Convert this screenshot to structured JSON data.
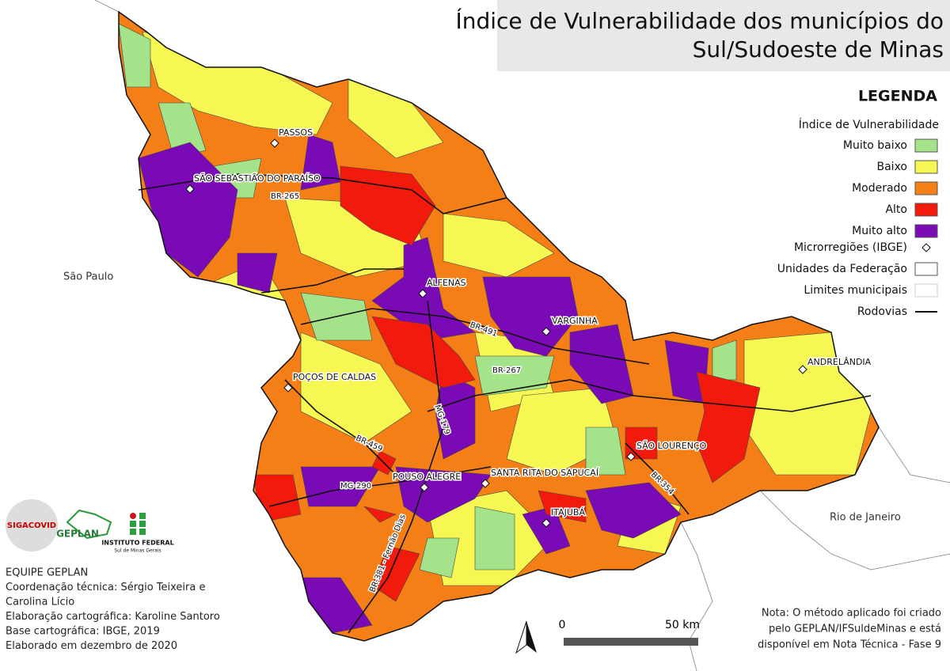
{
  "header": {
    "title_lines": [
      "Índice de Vulnerabilidade dos municípios do",
      "Sul/Sudoeste de Minas"
    ]
  },
  "legend": {
    "heading": "LEGENDA",
    "subtitle": "Índice de Vulnerabilidade",
    "classes": [
      {
        "label": "Muito baixo",
        "color": "#a4e38a"
      },
      {
        "label": "Baixo",
        "color": "#f6f752"
      },
      {
        "label": "Moderado",
        "color": "#f57f17"
      },
      {
        "label": "Alto",
        "color": "#f2190d"
      },
      {
        "label": "Muito alto",
        "color": "#790ab6"
      }
    ],
    "symbols": [
      "Microrregiões (IBGE)",
      "Unidades da Federação",
      "Limites municipais",
      "Rodovias"
    ]
  },
  "places": [
    "PASSOS",
    "SÃO SEBASTIÃO DO PARAÍSO",
    "ALFENAS",
    "VARGINHA",
    "POÇOS DE CALDAS",
    "ANDRELÂNDIA",
    "SÃO LOURENÇO",
    "POUSO ALEGRE",
    "SANTA RITA DO SAPUCAÍ",
    "ITAJUBÁ"
  ],
  "roads": [
    "BR-265",
    "BR-491",
    "BR-267",
    "MG-179",
    "BR-459",
    "MG-290",
    "BR-354",
    "BR-381 - Fernão Dias"
  ],
  "states": [
    "São Paulo",
    "Rio de Janeiro"
  ],
  "logos": [
    "SIGACOVID",
    "GEPLAN",
    "INSTITUTO FEDERAL",
    "Sul de Minas Gerais"
  ],
  "credits": [
    "EQUIPE GEPLAN",
    "Coordenação técnica: Sérgio Teixeira e",
    "Carolina Lício",
    "Elaboração cartográfica: Karoline Santoro",
    "Base cartográfica: IBGE, 2019",
    "Elaborado em dezembro de 2020"
  ],
  "scale_bar": {
    "labels": [
      "0",
      "50 km"
    ]
  },
  "note": [
    "Nota: O método aplicado foi criado",
    "pelo GEPLAN/IFSuldeMinas e está",
    "disponível em Nota Técnica - Fase 9"
  ]
}
